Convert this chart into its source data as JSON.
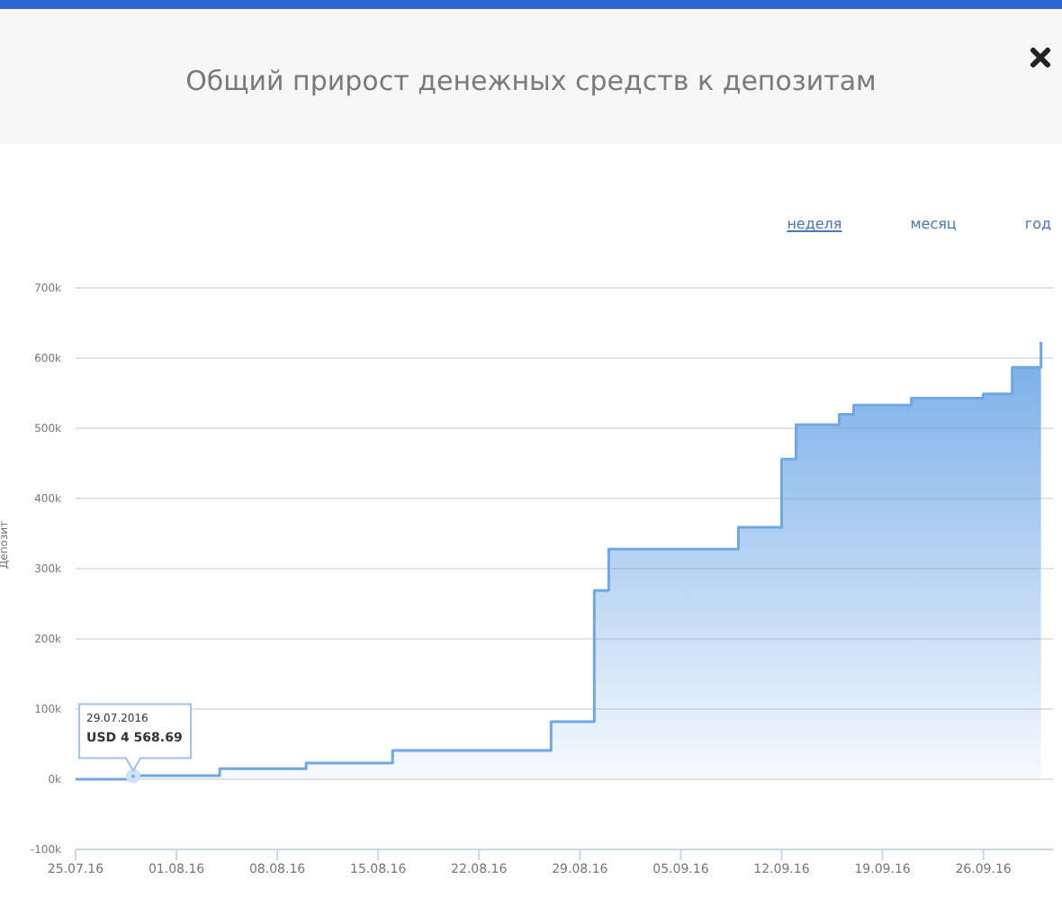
{
  "chart_data": {
    "type": "area",
    "title": "Общий прирост денежных средств к депозитам",
    "ylabel": "Депозит",
    "annotations": [
      {
        "text": "29.07.2016\nUSD 4 568.69",
        "x": "2016-07-29",
        "y": 4568.69
      },
      "неделя",
      "месяц",
      "год"
    ],
    "x": [
      "2016-07-25",
      "2016-07-29",
      "2016-07-29",
      "2016-08-04",
      "2016-08-04",
      "2016-08-10",
      "2016-08-10",
      "2016-08-16",
      "2016-08-16",
      "2016-08-27",
      "2016-08-27",
      "2016-08-30",
      "2016-08-30",
      "2016-08-31",
      "2016-08-31",
      "2016-09-09",
      "2016-09-09",
      "2016-09-12",
      "2016-09-12",
      "2016-09-13",
      "2016-09-13",
      "2016-09-16",
      "2016-09-16",
      "2016-09-17",
      "2016-09-17",
      "2016-09-21",
      "2016-09-21",
      "2016-09-26",
      "2016-09-26",
      "2016-09-28",
      "2016-09-28",
      "2016-09-30",
      "2016-09-30"
    ],
    "series": [
      {
        "color": "#6fa8e6",
        "values": [
          0,
          0,
          5000,
          5000,
          15000,
          15000,
          23000,
          23000,
          41000,
          41000,
          82000,
          82000,
          269000,
          269000,
          328000,
          328000,
          359000,
          359000,
          456000,
          456000,
          505000,
          505000,
          520000,
          520000,
          533000,
          533000,
          543000,
          543000,
          549000,
          549000,
          587000,
          587000,
          623000
        ]
      }
    ],
    "xlim": [
      "2016-07-25",
      "2016-09-30T20:00"
    ],
    "xticks": [
      {
        "value": "2016-07-25",
        "label": "25.07.16"
      },
      {
        "value": "2016-08-01",
        "label": "01.08.16"
      },
      {
        "value": "2016-08-08",
        "label": "08.08.16"
      },
      {
        "value": "2016-08-15",
        "label": "15.08.16"
      },
      {
        "value": "2016-08-22",
        "label": "22.08.16"
      },
      {
        "value": "2016-08-29",
        "label": "29.08.16"
      },
      {
        "value": "2016-09-05",
        "label": "05.09.16"
      },
      {
        "value": "2016-09-12",
        "label": "12.09.16"
      },
      {
        "value": "2016-09-19",
        "label": "19.09.16"
      },
      {
        "value": "2016-09-26",
        "label": "26.09.16"
      }
    ],
    "ylim": [
      -100000,
      700000
    ],
    "yticks": [
      {
        "value": -100000,
        "label": "-100k"
      },
      {
        "value": 0,
        "label": "0k"
      },
      {
        "value": 100000,
        "label": "100k"
      },
      {
        "value": 200000,
        "label": "200k"
      },
      {
        "value": 300000,
        "label": "300k"
      },
      {
        "value": 400000,
        "label": "400k"
      },
      {
        "value": 500000,
        "label": "500k"
      },
      {
        "value": 600000,
        "label": "600k"
      },
      {
        "value": 700000,
        "label": "700k"
      }
    ],
    "grid": "y",
    "legend": false
  }
}
